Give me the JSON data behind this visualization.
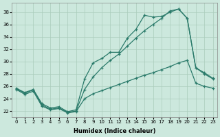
{
  "xlabel": "Humidex (Indice chaleur)",
  "bg_color": "#cce8dd",
  "grid_color": "#aaccbb",
  "line_color": "#2a7a6a",
  "xlim": [
    -0.5,
    23.5
  ],
  "ylim": [
    21.0,
    39.5
  ],
  "xticks": [
    0,
    1,
    2,
    3,
    4,
    5,
    6,
    7,
    8,
    9,
    10,
    11,
    12,
    13,
    14,
    15,
    16,
    17,
    18,
    19,
    20,
    21,
    22,
    23
  ],
  "yticks": [
    22,
    24,
    26,
    28,
    30,
    32,
    34,
    36,
    38
  ],
  "curve1_x": [
    0,
    1,
    2,
    3,
    4,
    5,
    6,
    7,
    8,
    9,
    10,
    11,
    12,
    13,
    14,
    15,
    16,
    17,
    18,
    19,
    20,
    21,
    22,
    23
  ],
  "curve1_y": [
    25.7,
    25.0,
    25.5,
    23.2,
    22.5,
    22.7,
    21.9,
    22.2,
    27.2,
    29.8,
    30.5,
    31.5,
    31.5,
    33.8,
    35.2,
    37.5,
    37.2,
    37.3,
    38.0,
    38.5,
    37.0,
    29.0,
    28.2,
    27.3
  ],
  "curve2_x": [
    0,
    1,
    2,
    3,
    4,
    5,
    6,
    7,
    8,
    9,
    10,
    11,
    12,
    13,
    14,
    15,
    16,
    17,
    18,
    19,
    20,
    21,
    22,
    23
  ],
  "curve2_y": [
    25.6,
    24.9,
    25.4,
    23.0,
    22.3,
    22.5,
    21.8,
    22.0,
    25.5,
    27.5,
    29.0,
    30.2,
    31.2,
    32.5,
    33.8,
    35.0,
    36.0,
    37.0,
    38.2,
    38.5,
    37.0,
    29.0,
    28.0,
    27.2
  ],
  "curve3_x": [
    0,
    1,
    2,
    3,
    4,
    5,
    6,
    7,
    8,
    9,
    10,
    11,
    12,
    13,
    14,
    15,
    16,
    17,
    18,
    19,
    20,
    21,
    22,
    23
  ],
  "curve3_y": [
    25.5,
    24.7,
    25.2,
    22.8,
    22.2,
    22.4,
    21.7,
    21.9,
    24.0,
    24.8,
    25.3,
    25.8,
    26.3,
    26.8,
    27.3,
    27.8,
    28.2,
    28.7,
    29.2,
    29.8,
    30.2,
    26.5,
    26.0,
    25.7
  ]
}
